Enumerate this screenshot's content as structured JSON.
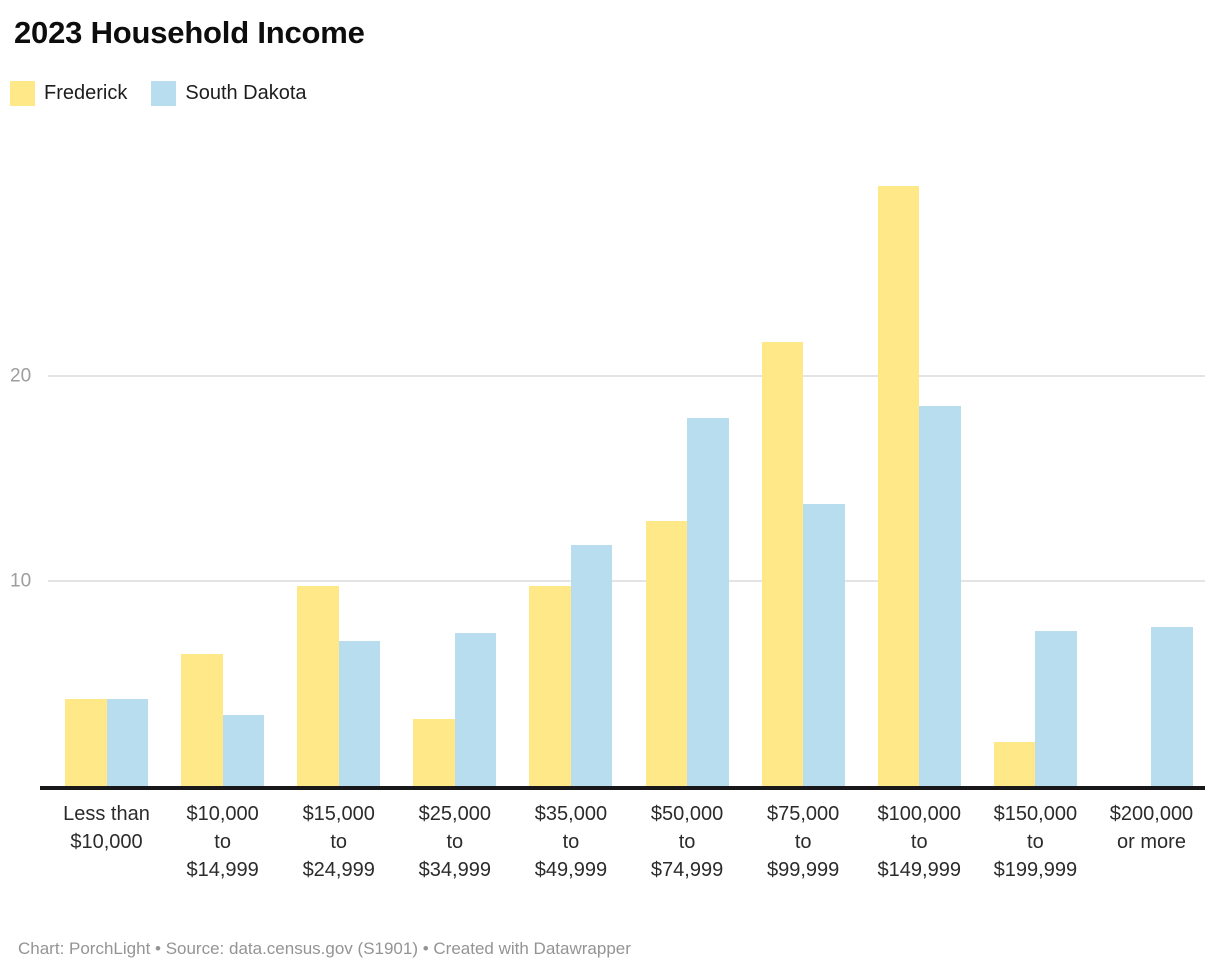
{
  "footer": {
    "text": "Chart: PorchLight • Source: data.census.gov (S1901) • Created with Datawrapper"
  },
  "chart_data": {
    "type": "bar",
    "title": "2023 Household Income",
    "categories": [
      "Less than\n$10,000",
      "$10,000\nto\n$14,999",
      "$15,000\nto\n$24,999",
      "$25,000\nto\n$34,999",
      "$35,000\nto\n$49,999",
      "$50,000\nto\n$74,999",
      "$75,000\nto\n$99,999",
      "$100,000\nto\n$149,999",
      "$150,000\nto\n$199,999",
      "$200,000\nor more"
    ],
    "series": [
      {
        "name": "Frederick",
        "color": "#FFE887",
        "values": [
          4.3,
          6.5,
          9.8,
          3.3,
          9.8,
          13.0,
          21.7,
          29.3,
          2.2,
          0
        ]
      },
      {
        "name": "South Dakota",
        "color": "#B8DDEE",
        "values": [
          4.3,
          3.5,
          7.1,
          7.5,
          11.8,
          18.0,
          13.8,
          18.6,
          7.6,
          7.8
        ]
      }
    ],
    "ylabel": "",
    "xlabel": "",
    "y_ticks": [
      10,
      20
    ],
    "ylim": [
      0,
      31.7
    ],
    "grid": "horizontal-only",
    "legend_position": "top-left",
    "value_unit": "percent of households"
  }
}
